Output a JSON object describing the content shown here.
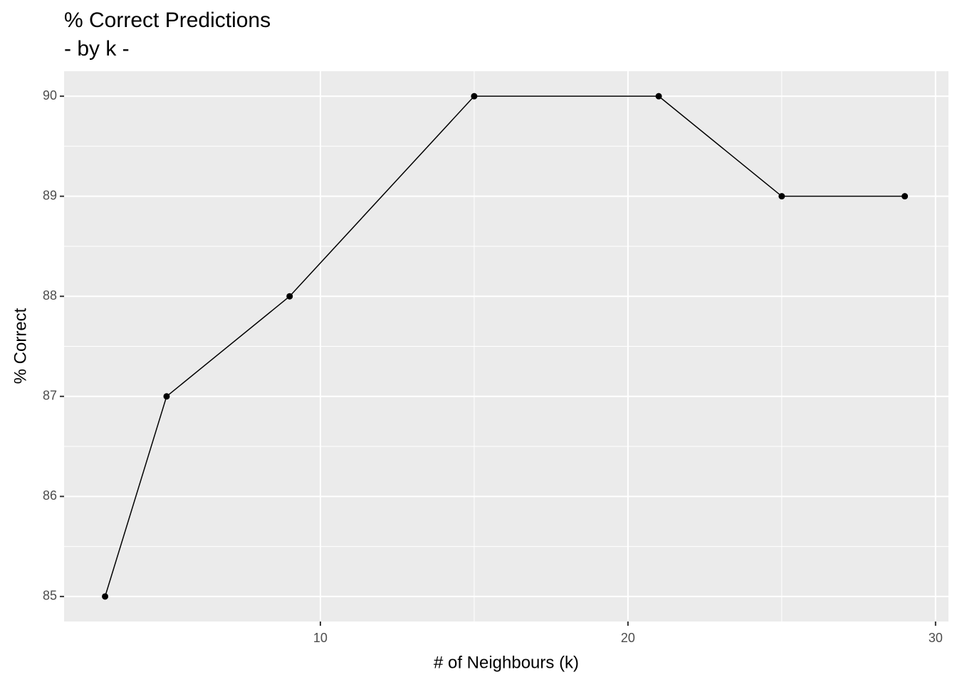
{
  "chart_data": {
    "type": "line",
    "title": "% Correct Predictions",
    "subtitle": "- by k -",
    "x_label": "# of Neighbours (k)",
    "y_label": "% Correct",
    "x": [
      3,
      5,
      9,
      15,
      21,
      25,
      29
    ],
    "series": [
      {
        "color": "#000000",
        "values": [
          85,
          87,
          88,
          90,
          90,
          89,
          89
        ]
      }
    ],
    "xlim": [
      1.667,
      30.42
    ],
    "xticks": [
      10,
      20,
      30
    ],
    "ylim": [
      84.75,
      90.25
    ],
    "yticks": [
      85,
      86,
      87,
      88,
      89,
      90
    ],
    "grid": true
  }
}
